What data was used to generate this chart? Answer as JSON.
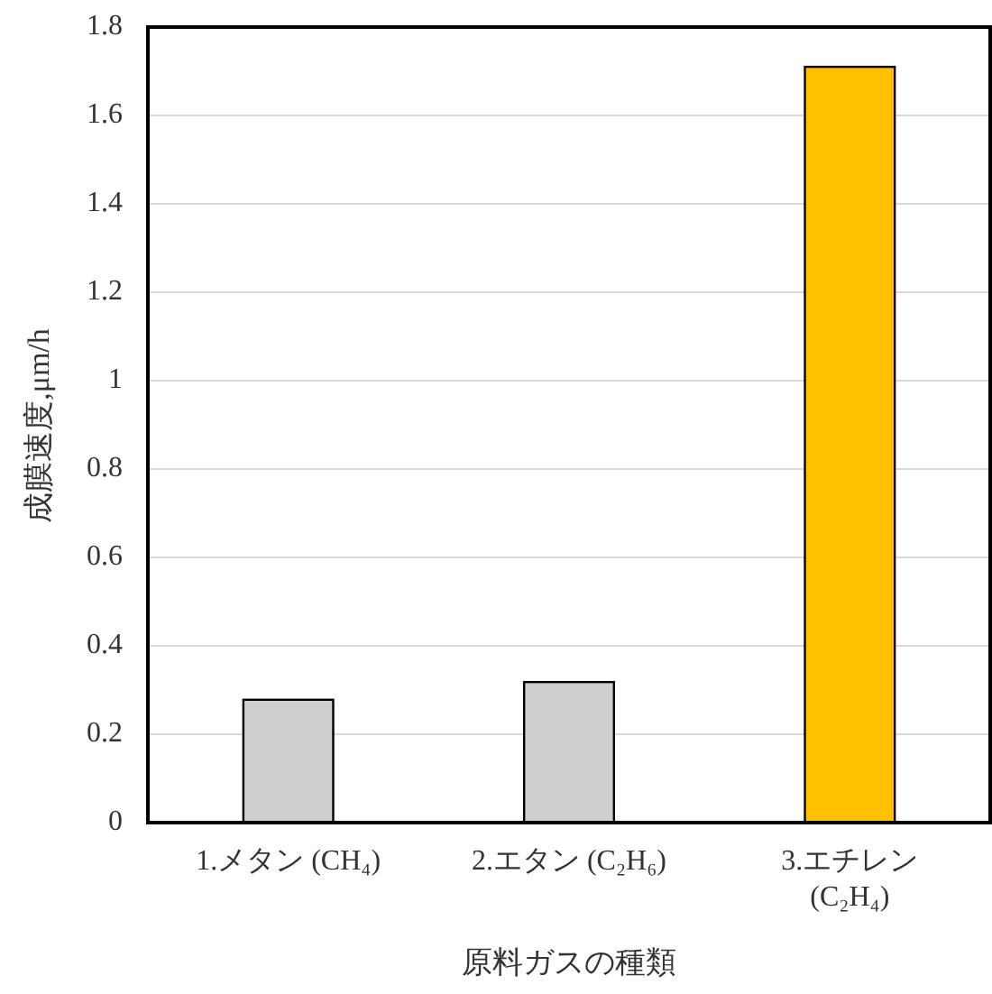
{
  "chart_data": {
    "type": "bar",
    "xlabel": "原料ガスの種類",
    "ylabel": "成膜速度,μm/h",
    "categories": [
      "1.メタン (CH₄)",
      "2.エタン (C₂H₆)",
      "3.エチレン (C₂H₄)"
    ],
    "values": [
      0.278,
      0.318,
      1.71
    ],
    "colors": [
      "#d0cece",
      "#d0cece",
      "#ffc000"
    ],
    "ylim": [
      0,
      1.8
    ],
    "yticks": [
      0,
      0.2,
      0.4,
      0.6,
      0.8,
      1,
      1.2,
      1.4,
      1.6,
      1.8
    ],
    "grid": "y"
  }
}
